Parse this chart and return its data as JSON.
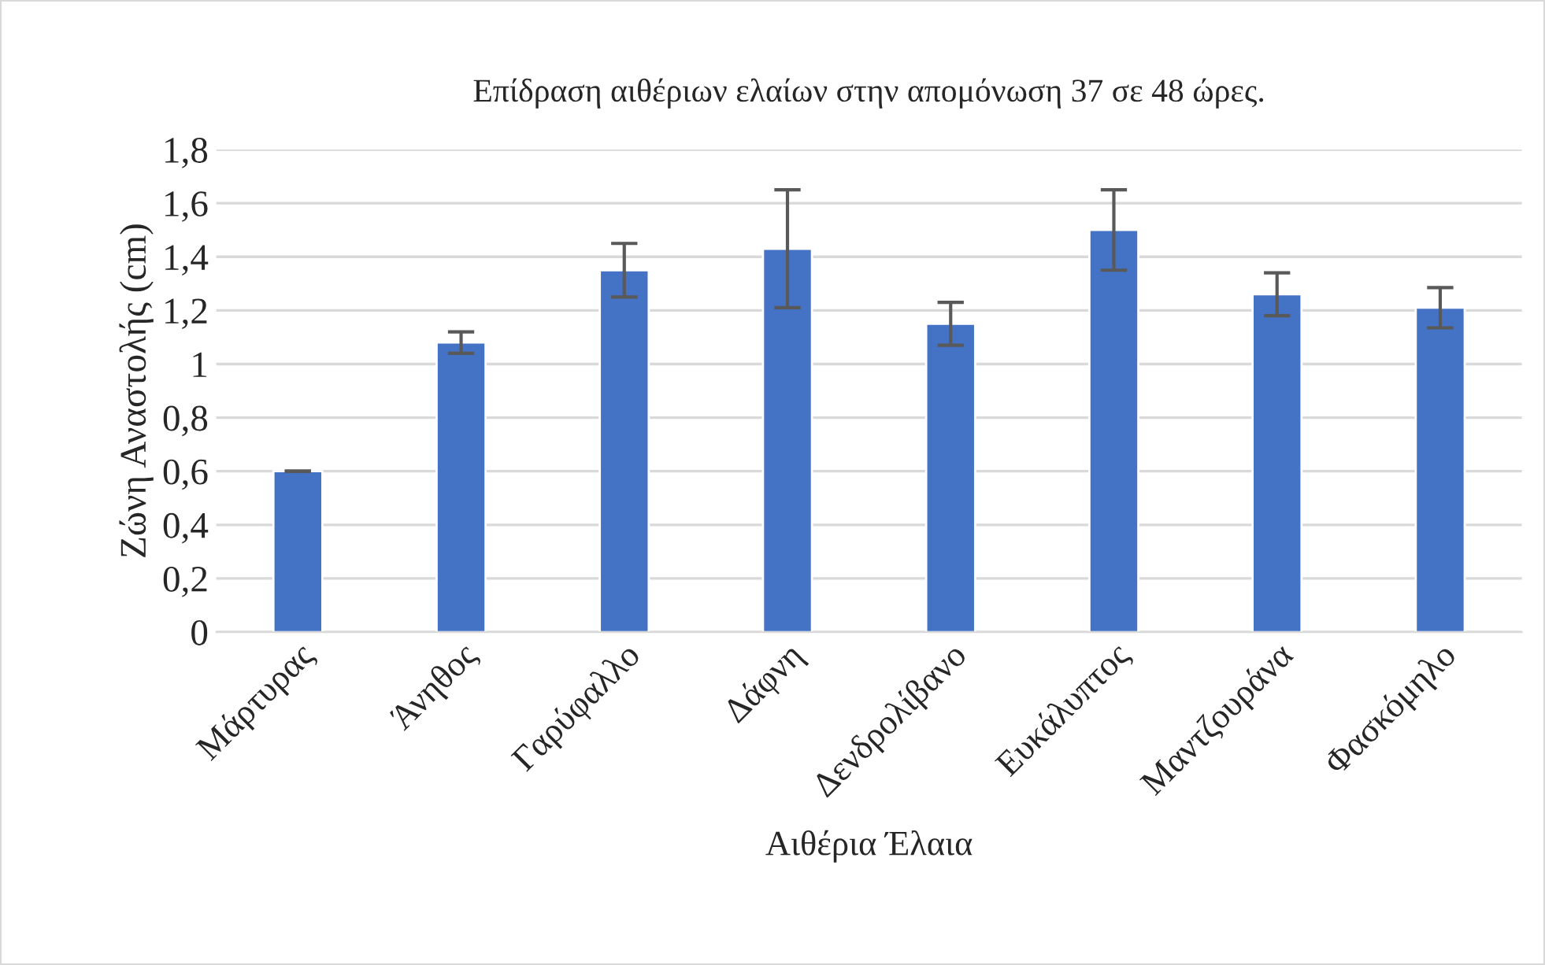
{
  "chart_data": {
    "type": "bar",
    "title": "Επίδραση αιθέριων ελαίων στην απομόνωση 37 σε 48 ώρες.",
    "xlabel": "Αιθέρια Έλαια",
    "ylabel": "Ζώνη Αναστολής (cm)",
    "categories": [
      "Μάρτυρας",
      "Άνηθος",
      "Γαρύφαλλο",
      "Δάφνη",
      "Δενδρολίβανο",
      "Ευκάλυπτος",
      "Μαντζουράνα",
      "Φασκόμηλο"
    ],
    "values": [
      0.6,
      1.08,
      1.35,
      1.43,
      1.15,
      1.5,
      1.26,
      1.21
    ],
    "errors": [
      0,
      0.04,
      0.1,
      0.22,
      0.08,
      0.15,
      0.08,
      0.075
    ],
    "color": "#4472c4",
    "ylim": [
      0,
      1.8
    ],
    "yticks": [
      0,
      {
        "value": 0.2,
        "label": "0,2"
      },
      {
        "value": 0.4,
        "label": "0,4"
      },
      {
        "value": 0.6,
        "label": "0,6"
      },
      {
        "value": 0.8,
        "label": "0,8"
      },
      1,
      {
        "value": 1.2,
        "label": "1,2"
      },
      {
        "value": 1.4,
        "label": "1,4"
      },
      {
        "value": 1.6,
        "label": "1,6"
      },
      {
        "value": 1.8,
        "label": "1,8"
      }
    ],
    "grid": "y",
    "legend": false
  }
}
